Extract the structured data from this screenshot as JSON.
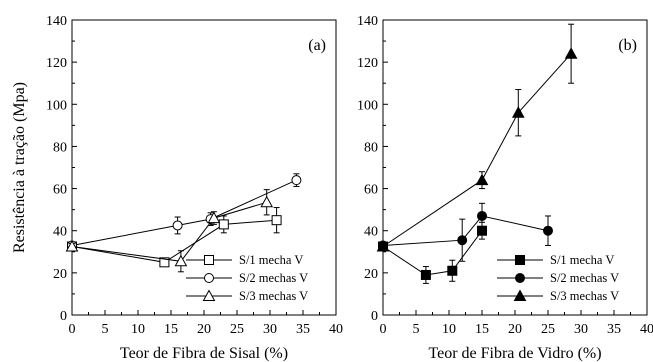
{
  "chart_data": [
    {
      "type": "line",
      "panel_label": "(a)",
      "xlabel": "Teor de Fibra de Sisal (%)",
      "ylabel": "Resistência à tração (Mpa)",
      "xlim": [
        0,
        40
      ],
      "ylim": [
        0,
        140
      ],
      "xticks": [
        "0",
        "5",
        "10",
        "15",
        "20",
        "25",
        "30",
        "35",
        "40"
      ],
      "yticks": [
        "0",
        "20",
        "40",
        "60",
        "80",
        "100",
        "120",
        "140"
      ],
      "grid": false,
      "legend_position": "bottom-right",
      "series": [
        {
          "name": "S/1 mecha  V",
          "marker": "square-open",
          "points": [
            {
              "x": 0,
              "y": 32.5,
              "err": 1.5
            },
            {
              "x": 14,
              "y": 25,
              "err": 2
            },
            {
              "x": 23,
              "y": 43,
              "err": 4
            },
            {
              "x": 31,
              "y": 45,
              "err": 6
            }
          ]
        },
        {
          "name": "S/2 mechas V",
          "marker": "circle-open",
          "points": [
            {
              "x": 0,
              "y": 33,
              "err": 1.5
            },
            {
              "x": 16,
              "y": 42.5,
              "err": 4
            },
            {
              "x": 21,
              "y": 45.5,
              "err": 3
            },
            {
              "x": 34,
              "y": 64,
              "err": 3
            }
          ]
        },
        {
          "name": "S/3 mechas V",
          "marker": "triangle-open",
          "points": [
            {
              "x": 0,
              "y": 32.5,
              "err": 1.5
            },
            {
              "x": 16.5,
              "y": 25.5,
              "err": 5
            },
            {
              "x": 21.5,
              "y": 46,
              "err": 3
            },
            {
              "x": 29.5,
              "y": 53.5,
              "err": 6
            }
          ]
        }
      ]
    },
    {
      "type": "line",
      "panel_label": "(b)",
      "xlabel": "Teor de Fibra de Vidro (%)",
      "ylabel": "",
      "xlim": [
        0,
        40
      ],
      "ylim": [
        0,
        140
      ],
      "xticks": [
        "0",
        "5",
        "10",
        "15",
        "20",
        "25",
        "30",
        "35",
        "40"
      ],
      "yticks": [
        "0",
        "20",
        "40",
        "60",
        "80",
        "100",
        "120",
        "140"
      ],
      "grid": false,
      "legend_position": "bottom-right",
      "series": [
        {
          "name": "S/1 mecha  V",
          "marker": "square-filled",
          "points": [
            {
              "x": 0,
              "y": 32.5,
              "err": 1.5
            },
            {
              "x": 6.5,
              "y": 19,
              "err": 4
            },
            {
              "x": 10.5,
              "y": 21,
              "err": 5
            },
            {
              "x": 15,
              "y": 40,
              "err": 4
            }
          ]
        },
        {
          "name": "S/2 mechas V",
          "marker": "circle-filled",
          "points": [
            {
              "x": 0,
              "y": 33,
              "err": 1.5
            },
            {
              "x": 12,
              "y": 35.5,
              "err": 10
            },
            {
              "x": 15,
              "y": 47,
              "err": 6
            },
            {
              "x": 25,
              "y": 40,
              "err": 7
            }
          ]
        },
        {
          "name": "S/3 mechas V",
          "marker": "triangle-filled",
          "points": [
            {
              "x": 0,
              "y": 32.5,
              "err": 1.5
            },
            {
              "x": 15,
              "y": 64,
              "err": 4
            },
            {
              "x": 20.5,
              "y": 96,
              "err": 11
            },
            {
              "x": 28.5,
              "y": 124,
              "err": 14
            }
          ]
        }
      ]
    }
  ]
}
